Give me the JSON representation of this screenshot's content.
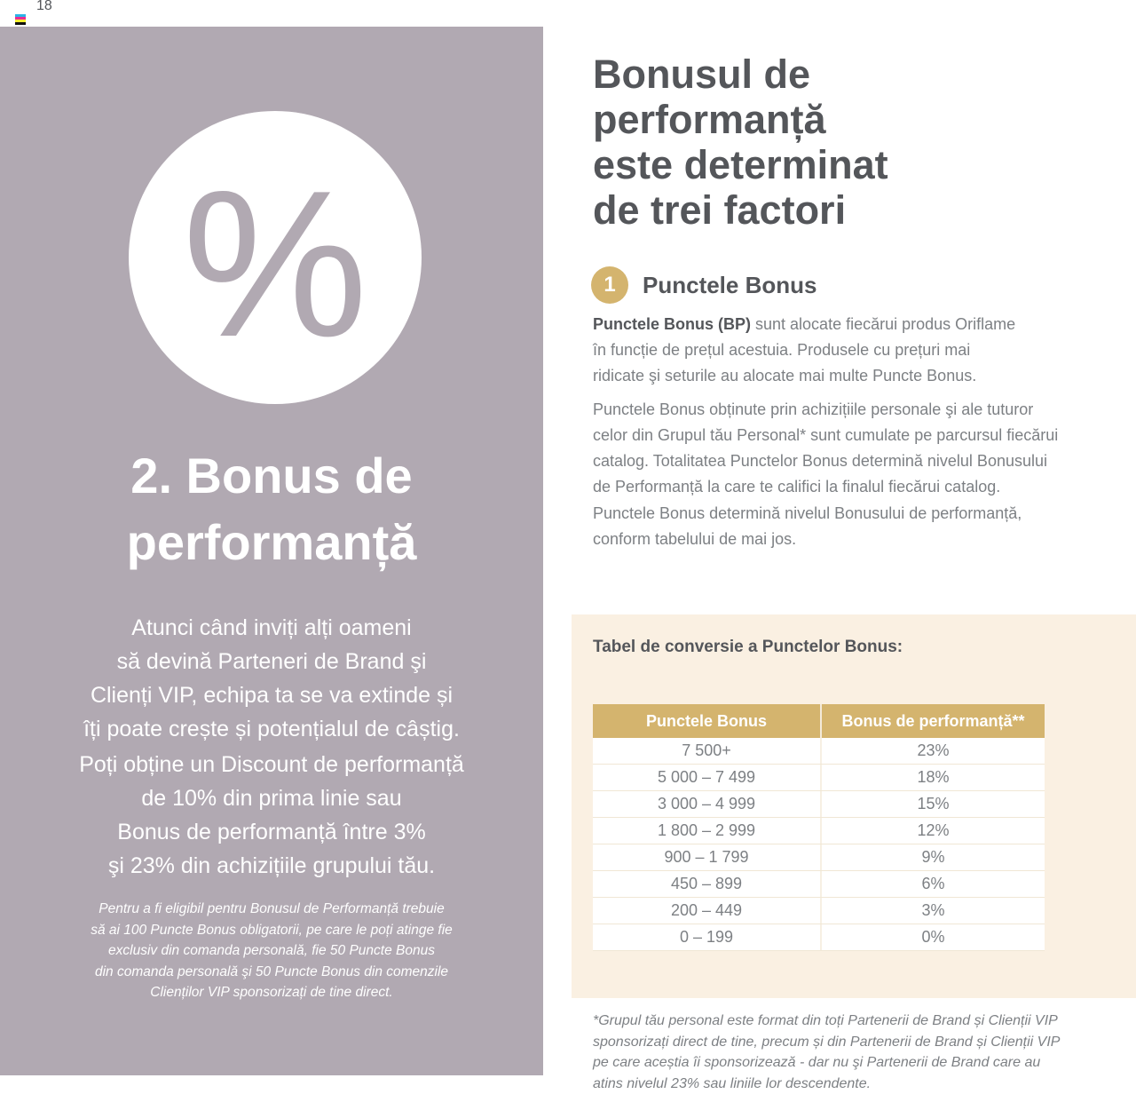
{
  "page": {
    "number": "18",
    "color_bar_stripes": [
      "#2bb3e6",
      "#ec2c91",
      "#f6ee31",
      "#111111"
    ]
  },
  "colors": {
    "panel_purple": "#b1a9b2",
    "accent_gold": "#d4b46e",
    "cream_box": "#faf0e2",
    "text_dark": "#54565a",
    "text_gray": "#7d8084"
  },
  "left_panel": {
    "percent_symbol": "%",
    "heading": "2. Bonus de\nperformanță",
    "para1": "Atunci când inviți alți oameni\nsă devină Parteneri de Brand şi\nClienți VIP, echipa ta se va extinde și\nîți poate crește și potențialul de câștig.",
    "para2": "Poți obține un Discount de performanță\nde 10% din prima linie sau\nBonus de performanță între 3%\nşi 23% din achizițiile grupului tău.",
    "footnote": "Pentru a fi eligibil pentru Bonusul de Performanță trebuie\nsă ai 100 Puncte Bonus obligatorii, pe care le poți atinge fie\nexclusiv din comanda personală, fie 50 Puncte Bonus\ndin comanda personală şi 50 Puncte Bonus din comenzile\nClienților VIP sponsorizați de tine direct."
  },
  "right_column": {
    "heading": "Bonusul de\nperformanță\neste determinat\nde trei factori",
    "step1": {
      "number": "1",
      "title": "Punctele Bonus"
    },
    "para1_lead": "Punctele Bonus (BP)",
    "para1_rest": " sunt alocate fiecărui produs Oriflame\nîn funcție de prețul acestuia. Produsele cu prețuri mai\nridicate şi seturile au alocate mai multe Puncte Bonus.",
    "para2": "Punctele Bonus obținute prin achizițiile personale şi ale tuturor\ncelor din Grupul tău Personal* sunt cumulate pe parcursul fiecărui\ncatalog. Totalitatea Punctelor Bonus determină nivelul Bonusului\nde Performanță la care te califici la finalul fiecărui catalog.",
    "para3": "Punctele Bonus determină nivelul Bonusului de performanță,\nconform tabelului de mai jos.",
    "footnote": "*Grupul tău personal este format din toți Partenerii de Brand și Clienții VIP\nsponsorizați direct de tine, precum și din Partenerii de Brand și Clienții VIP\npe care aceștia îi sponsorizează - dar nu şi Partenerii de Brand care au\natins nivelul 23% sau liniile lor descendente."
  },
  "chart_data": {
    "type": "table",
    "title": "Tabel de conversie a Punctelor Bonus:",
    "headers": [
      "Punctele Bonus",
      "Bonus de performanță**"
    ],
    "rows": [
      [
        "7 500+",
        "23%"
      ],
      [
        "5 000 – 7 499",
        "18%"
      ],
      [
        "3 000 – 4 999",
        "15%"
      ],
      [
        "1 800 – 2 999",
        "12%"
      ],
      [
        "900 – 1 799",
        "9%"
      ],
      [
        "450 – 899",
        "6%"
      ],
      [
        "200 – 449",
        "3%"
      ],
      [
        "0 – 199",
        "0%"
      ]
    ]
  }
}
